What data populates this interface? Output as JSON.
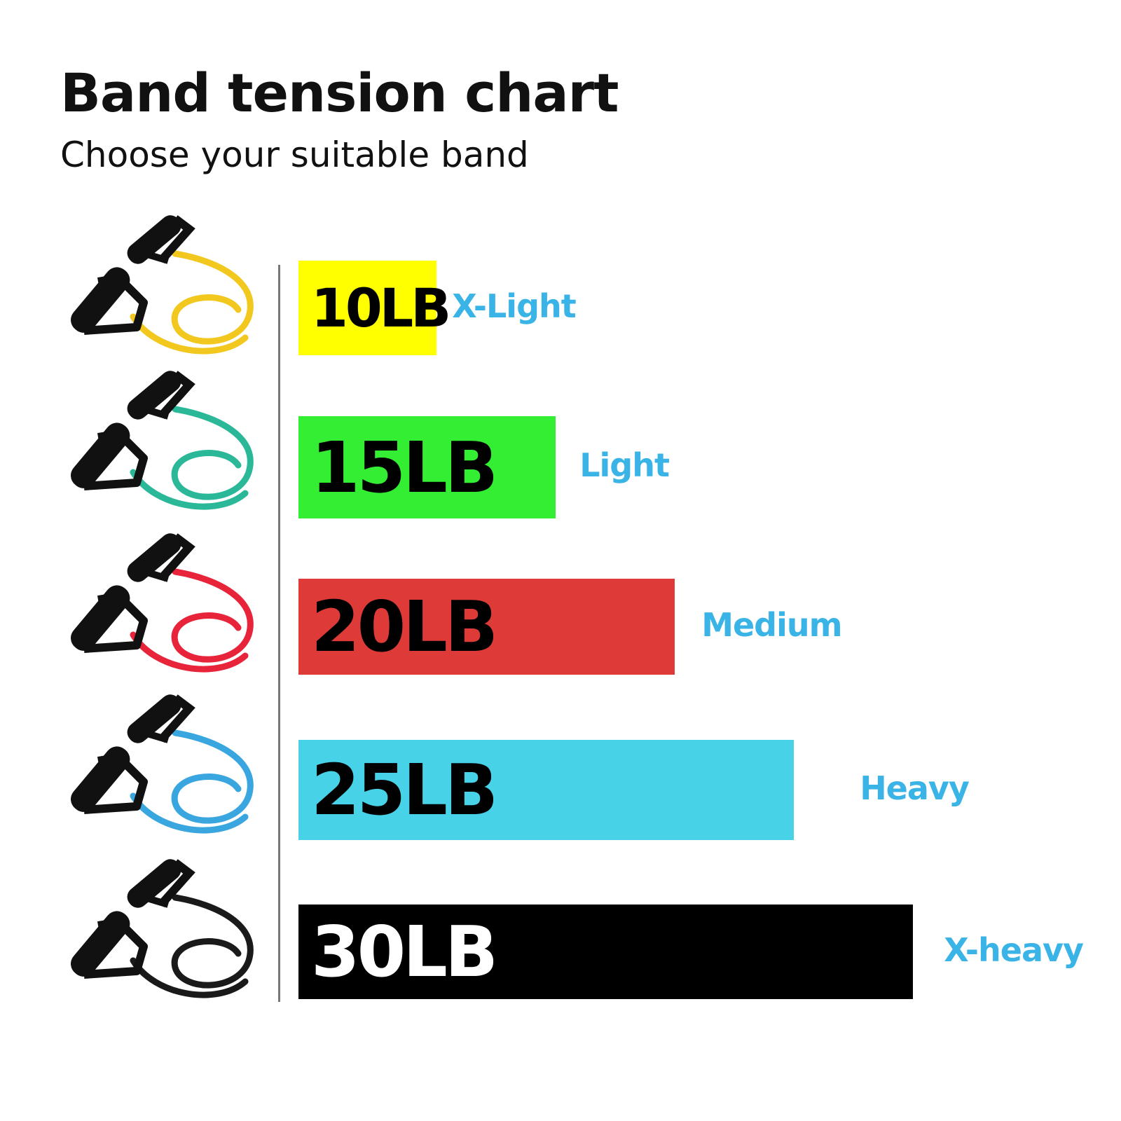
{
  "title": "Band tension chart",
  "subtitle": "Choose your suitable band",
  "label_color": "#3ab4e6",
  "chart_data": {
    "type": "bar",
    "orientation": "horizontal",
    "title": "Band tension chart",
    "subtitle": "Choose your suitable band",
    "categories": [
      "10LB",
      "15LB",
      "20LB",
      "25LB",
      "30LB"
    ],
    "values": [
      10,
      15,
      20,
      25,
      30
    ],
    "unit": "LB",
    "levels": [
      "X-Light",
      "Light",
      "Medium",
      "Heavy",
      "X-heavy"
    ],
    "colors": [
      "#ffff00",
      "#33ee33",
      "#dd3a38",
      "#48d2e8",
      "#000000"
    ],
    "band_colors": [
      "#f2c81e",
      "#2bb898",
      "#e8243a",
      "#3aa6e0",
      "#1a1a1a"
    ],
    "text_colors": [
      "#000000",
      "#000000",
      "#000000",
      "#000000",
      "#ffffff"
    ],
    "grid": false,
    "legend": "none"
  }
}
